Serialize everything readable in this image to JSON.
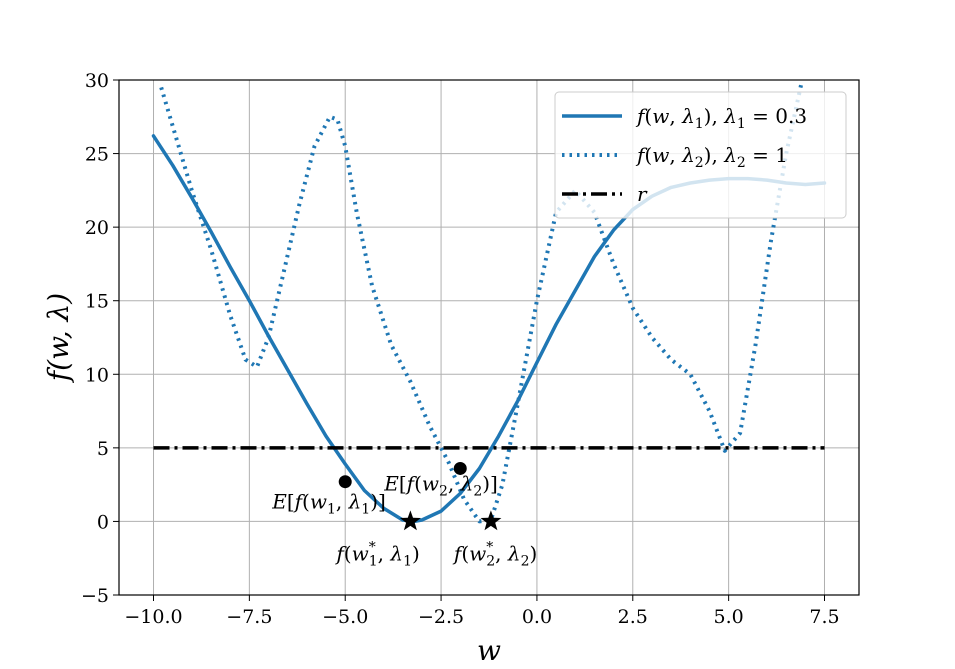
{
  "chart_data": {
    "type": "line",
    "xlabel": "w",
    "ylabel": "f(w, λ)",
    "xlim": [
      -10.9,
      8.4
    ],
    "ylim": [
      -5,
      30
    ],
    "xticks": [
      -10.0,
      -7.5,
      -5.0,
      -2.5,
      0.0,
      2.5,
      5.0,
      7.5
    ],
    "xtick_labels": [
      "−10.0",
      "−7.5",
      "−5.0",
      "−2.5",
      "0.0",
      "2.5",
      "5.0",
      "7.5"
    ],
    "yticks": [
      -5,
      0,
      5,
      10,
      15,
      20,
      25,
      30
    ],
    "ytick_labels": [
      "−5",
      "0",
      "5",
      "10",
      "15",
      "20",
      "25",
      "30"
    ],
    "grid": true,
    "legend_position": "top-right",
    "series": [
      {
        "name": "f(w, λ1), λ1 = 0.3",
        "style": "solid",
        "color": "#1f77b4",
        "x": [
          -10.0,
          -9.5,
          -9.0,
          -8.5,
          -8.0,
          -7.5,
          -7.0,
          -6.5,
          -6.0,
          -5.5,
          -5.0,
          -4.5,
          -4.0,
          -3.5,
          -3.2,
          -3.0,
          -2.5,
          -2.0,
          -1.5,
          -1.0,
          -0.5,
          0.0,
          0.5,
          1.0,
          1.5,
          2.0,
          2.5,
          3.0,
          3.5,
          4.0,
          4.5,
          5.0,
          5.5,
          6.0,
          6.5,
          7.0,
          7.5
        ],
        "y": [
          26.2,
          24.2,
          22.0,
          19.7,
          17.3,
          15.0,
          12.6,
          10.3,
          8.0,
          5.8,
          3.9,
          2.1,
          0.9,
          0.1,
          0.0,
          0.1,
          0.7,
          1.9,
          3.6,
          5.8,
          8.2,
          10.8,
          13.4,
          15.7,
          18.0,
          19.8,
          21.2,
          22.1,
          22.7,
          23.0,
          23.2,
          23.3,
          23.3,
          23.2,
          23.0,
          22.9,
          23.0
        ]
      },
      {
        "name": "f(w, λ2), λ2 = 1",
        "style": "dotted",
        "color": "#1f77b4",
        "x": [
          -9.8,
          -9.0,
          -8.5,
          -8.0,
          -7.6,
          -7.3,
          -7.0,
          -6.6,
          -6.2,
          -5.8,
          -5.4,
          -5.2,
          -5.0,
          -4.7,
          -4.3,
          -3.8,
          -3.3,
          -2.8,
          -2.3,
          -1.9,
          -1.5,
          -1.2,
          -0.9,
          -0.5,
          0.0,
          0.5,
          1.0,
          1.5,
          2.0,
          2.5,
          3.0,
          3.5,
          4.0,
          4.5,
          4.9,
          5.3,
          5.7,
          6.1,
          6.5,
          6.9
        ],
        "y": [
          29.5,
          22.5,
          18.5,
          14.0,
          11.0,
          10.5,
          12.5,
          17.0,
          21.5,
          25.5,
          27.5,
          27.3,
          25.5,
          21.0,
          16.0,
          12.0,
          9.5,
          6.5,
          4.0,
          1.5,
          0.0,
          0.1,
          2.5,
          8.0,
          15.0,
          21.0,
          22.5,
          21.0,
          17.5,
          14.5,
          12.5,
          11.0,
          10.0,
          7.5,
          4.8,
          6.0,
          12.0,
          19.0,
          25.0,
          29.8
        ]
      },
      {
        "name": "r",
        "style": "dashdot",
        "color": "#000000",
        "x": [
          -10.0,
          7.5
        ],
        "y": [
          5,
          5
        ]
      }
    ],
    "points": [
      {
        "marker": "circle",
        "x": -5.0,
        "y": 2.7,
        "label": "E[f(w1, λ1)]"
      },
      {
        "marker": "circle",
        "x": -2.0,
        "y": 3.6,
        "label": "E[f(w2, λ2)]"
      },
      {
        "marker": "star",
        "x": -3.3,
        "y": 0.0,
        "label": "f(w1*, λ1)"
      },
      {
        "marker": "star",
        "x": -1.2,
        "y": 0.0,
        "label": "f(w2*, λ2)"
      }
    ],
    "legend": [
      {
        "label": "f(w, λ1), λ1 = 0.3",
        "style": "solid"
      },
      {
        "label": "f(w, λ2), λ2 = 1",
        "style": "dotted"
      },
      {
        "label": "r",
        "style": "dashdot"
      }
    ]
  }
}
